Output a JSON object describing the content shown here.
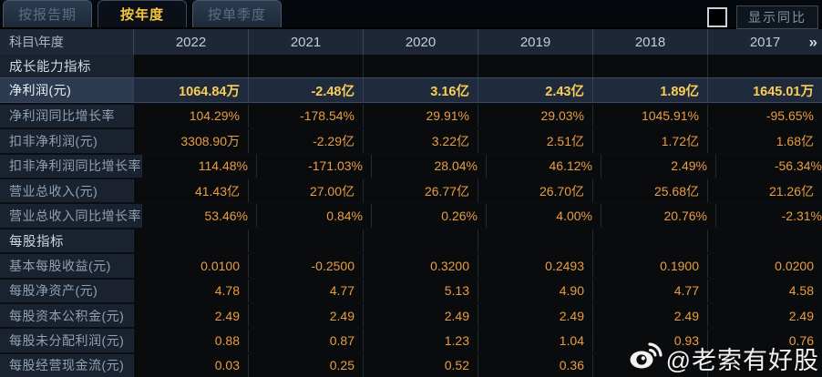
{
  "tabs": [
    {
      "label": "按报告期",
      "active": false
    },
    {
      "label": "按年度",
      "active": true
    },
    {
      "label": "按单季度",
      "active": false
    }
  ],
  "controls": {
    "show_yoy_label": "显示同比",
    "checkbox_checked": false
  },
  "table": {
    "corner_label": "科目\\年度",
    "years": [
      "2022",
      "2021",
      "2020",
      "2019",
      "2018",
      "2017"
    ],
    "more_icon": "»",
    "rows": [
      {
        "type": "section",
        "label": "成长能力指标"
      },
      {
        "type": "data",
        "label": "净利润(元)",
        "highlight": true,
        "values": [
          "1064.84万",
          "-2.48亿",
          "3.16亿",
          "2.43亿",
          "1.89亿",
          "1645.01万"
        ]
      },
      {
        "type": "data",
        "label": "净利润同比增长率",
        "values": [
          "104.29%",
          "-178.54%",
          "29.91%",
          "29.03%",
          "1045.91%",
          "-95.65%"
        ]
      },
      {
        "type": "data",
        "label": "扣非净利润(元)",
        "values": [
          "3308.90万",
          "-2.29亿",
          "3.22亿",
          "2.51亿",
          "1.72亿",
          "1.68亿"
        ]
      },
      {
        "type": "data",
        "label": "扣非净利润同比增长率",
        "values": [
          "114.48%",
          "-171.03%",
          "28.04%",
          "46.12%",
          "2.49%",
          "-56.34%"
        ]
      },
      {
        "type": "data",
        "label": "营业总收入(元)",
        "values": [
          "41.43亿",
          "27.00亿",
          "26.77亿",
          "26.70亿",
          "25.68亿",
          "21.26亿"
        ]
      },
      {
        "type": "data",
        "label": "营业总收入同比增长率",
        "values": [
          "53.46%",
          "0.84%",
          "0.26%",
          "4.00%",
          "20.76%",
          "-2.31%"
        ]
      },
      {
        "type": "section",
        "label": "每股指标"
      },
      {
        "type": "data",
        "label": "基本每股收益(元)",
        "values": [
          "0.0100",
          "-0.2500",
          "0.3200",
          "0.2493",
          "0.1900",
          "0.0200"
        ]
      },
      {
        "type": "data",
        "label": "每股净资产(元)",
        "values": [
          "4.78",
          "4.77",
          "5.13",
          "4.90",
          "4.77",
          "4.58"
        ]
      },
      {
        "type": "data",
        "label": "每股资本公积金(元)",
        "values": [
          "2.49",
          "2.49",
          "2.49",
          "2.49",
          "2.49",
          "2.49"
        ]
      },
      {
        "type": "data",
        "label": "每股未分配利润(元)",
        "values": [
          "0.88",
          "0.87",
          "1.23",
          "1.04",
          "0.93",
          "0.76"
        ]
      },
      {
        "type": "data",
        "label": "每股经营现金流(元)",
        "values": [
          "0.03",
          "0.25",
          "0.52",
          "0.36",
          "",
          ""
        ]
      }
    ]
  },
  "watermark": {
    "text": "@老索有好股"
  },
  "colors": {
    "accent_gold": "#f9ce55",
    "value_orange": "#e99d43",
    "active_tab_text": "#f5c63c",
    "highlight_row_bg": "#1f2a3c",
    "label_column_bg": "#19222e",
    "header_row_bg": "#1d2735",
    "cell_bg": "#0a0b0d"
  }
}
